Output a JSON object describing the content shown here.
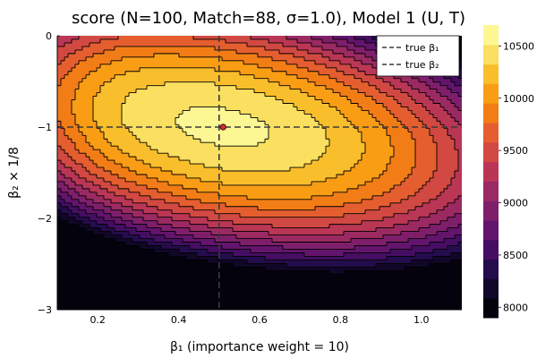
{
  "chart_data": {
    "type": "heatmap",
    "subtype": "filled-contour",
    "title": "score (N=100, Match=88, σ=1.0), Model 1 (U, T)",
    "xlabel": "β₁ (importance weight = 10)",
    "ylabel": "β₂ × 1/8",
    "xlim": [
      0.1,
      1.1
    ],
    "ylim": [
      -3.0,
      0.0
    ],
    "x_ticks": [
      0.2,
      0.4,
      0.6,
      0.8,
      1.0
    ],
    "x_tick_labels": [
      "0.2",
      "0.4",
      "0.6",
      "0.8",
      "1.0"
    ],
    "y_ticks": [
      0,
      -1,
      -2,
      -3
    ],
    "y_tick_labels": [
      "0",
      "−1",
      "−2",
      "−3"
    ],
    "colorbar": {
      "colormap": "inferno",
      "range": [
        7900,
        10700
      ],
      "ticks": [
        8000,
        8500,
        9000,
        9500,
        10000,
        10500
      ],
      "tick_labels": [
        "8000",
        "8500",
        "9000",
        "9500",
        "10000",
        "10500"
      ]
    },
    "contour_levels": [
      8000,
      8200,
      8400,
      8600,
      8800,
      9000,
      9200,
      9400,
      9600,
      9800,
      10000,
      10200,
      10400,
      10600
    ],
    "peak": {
      "x": 0.51,
      "y": -1.0,
      "value": 10650
    },
    "true_values": {
      "beta1": 0.5,
      "beta2": -1.0
    },
    "marker": {
      "x": 0.51,
      "y": -1.0,
      "color": "#e3262e"
    },
    "legend": {
      "position": "top-right",
      "entries": [
        "true β₁",
        "true β₂"
      ]
    },
    "grid": true
  }
}
